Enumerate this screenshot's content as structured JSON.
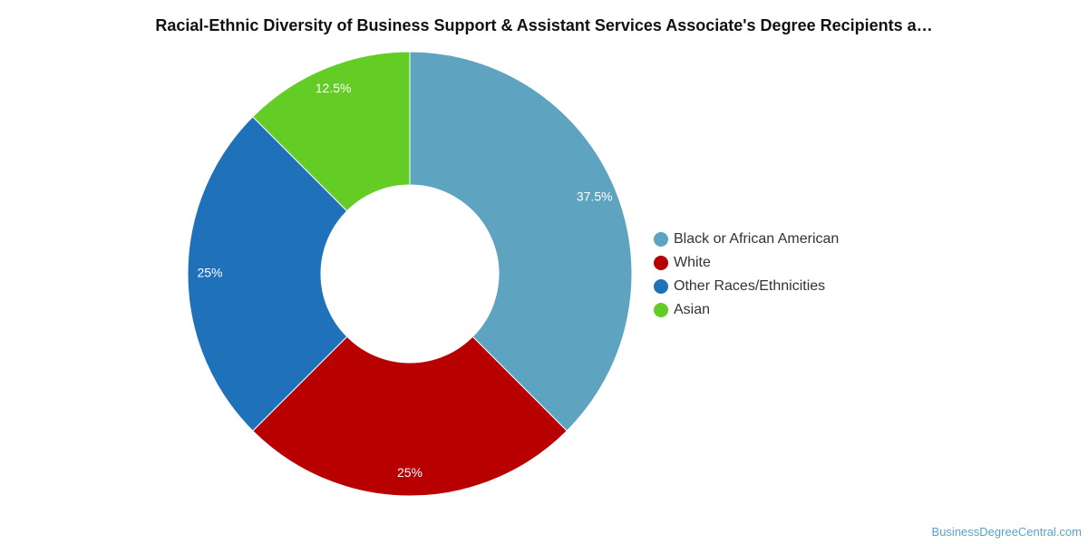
{
  "chart_data": {
    "type": "pie",
    "title": "Racial-Ethnic Diversity of Business Support & Assistant Services Associate's Degree Recipients a…",
    "donut": true,
    "categories": [
      "Black or African American",
      "White",
      "Other Races/Ethnicities",
      "Asian"
    ],
    "values": [
      37.5,
      25,
      25,
      12.5
    ],
    "data_labels": [
      "37.5%",
      "25%",
      "25%",
      "12.5%"
    ],
    "colors": [
      "#5ea3c0",
      "#b90000",
      "#1f72b9",
      "#63cd25"
    ],
    "legend_position": "right"
  },
  "credit": "BusinessDegreeCentral.com"
}
